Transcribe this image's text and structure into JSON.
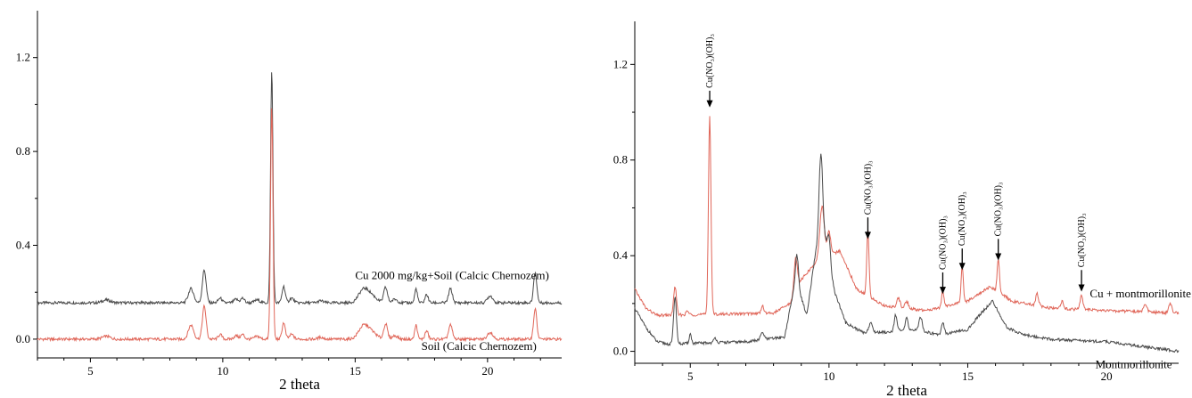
{
  "chart_data": [
    {
      "type": "line",
      "xlabel": "2 theta",
      "ylabel": "",
      "xlim": [
        3,
        22.8
      ],
      "ylim": [
        -0.08,
        1.4
      ],
      "xticks": [
        5,
        10,
        15,
        20
      ],
      "xtick_labels": [
        "5",
        "10",
        "15",
        "20"
      ],
      "yticks": [
        0.0,
        0.4,
        0.8,
        1.2
      ],
      "ytick_labels": [
        "0.0",
        "0.4",
        "0.8",
        "1.2"
      ],
      "series": [
        {
          "name": "Cu 2000 mg/kg+Soil (Calcic Chernozem)",
          "color": "#4a4a4a",
          "baseline": 0.155,
          "x": [
            3.0,
            22.8
          ],
          "peaks": [
            [
              5.6,
              0.012,
              0.15
            ],
            [
              8.8,
              0.06,
              0.1
            ],
            [
              9.3,
              0.14,
              0.07
            ],
            [
              9.9,
              0.02,
              0.07
            ],
            [
              10.5,
              0.015,
              0.08
            ],
            [
              10.75,
              0.02,
              0.07
            ],
            [
              11.3,
              0.012,
              0.1
            ],
            [
              11.85,
              0.99,
              0.045
            ],
            [
              12.3,
              0.07,
              0.06
            ],
            [
              12.6,
              0.02,
              0.08
            ],
            [
              13.7,
              0.008,
              0.1
            ],
            [
              15.3,
              0.05,
              0.18
            ],
            [
              15.6,
              0.03,
              0.2
            ],
            [
              16.15,
              0.065,
              0.07
            ],
            [
              16.5,
              0.015,
              0.1
            ],
            [
              17.3,
              0.06,
              0.05
            ],
            [
              17.7,
              0.035,
              0.06
            ],
            [
              18.6,
              0.06,
              0.07
            ],
            [
              20.1,
              0.03,
              0.1
            ],
            [
              21.8,
              0.13,
              0.06
            ]
          ]
        },
        {
          "name": "Soil (Calcic Chernozem)",
          "color": "#e06659",
          "baseline": 0.0,
          "x": [
            3.0,
            22.8
          ],
          "peaks": [
            [
              5.6,
              0.012,
              0.15
            ],
            [
              8.8,
              0.06,
              0.1
            ],
            [
              9.3,
              0.14,
              0.07
            ],
            [
              9.9,
              0.02,
              0.07
            ],
            [
              10.5,
              0.015,
              0.08
            ],
            [
              10.75,
              0.02,
              0.07
            ],
            [
              11.3,
              0.012,
              0.1
            ],
            [
              11.85,
              0.99,
              0.045
            ],
            [
              12.3,
              0.07,
              0.06
            ],
            [
              12.6,
              0.02,
              0.08
            ],
            [
              13.7,
              0.008,
              0.1
            ],
            [
              15.3,
              0.05,
              0.18
            ],
            [
              15.6,
              0.03,
              0.2
            ],
            [
              16.15,
              0.065,
              0.07
            ],
            [
              16.5,
              0.015,
              0.1
            ],
            [
              17.3,
              0.06,
              0.05
            ],
            [
              17.7,
              0.035,
              0.06
            ],
            [
              18.6,
              0.06,
              0.07
            ],
            [
              20.1,
              0.03,
              0.1
            ],
            [
              21.8,
              0.13,
              0.06
            ]
          ]
        }
      ],
      "series_labels": [
        {
          "text": "Cu 2000 mg/kg+Soil (Calcic Chernozem)",
          "x": 15.0,
          "y": 0.255
        },
        {
          "text": "Soil (Calcic Chernozem)",
          "x": 17.5,
          "y": -0.045
        }
      ]
    },
    {
      "type": "line",
      "xlabel": "2 theta",
      "ylabel": "",
      "xlim": [
        3,
        22.6
      ],
      "ylim": [
        -0.05,
        1.38
      ],
      "xticks": [
        5,
        10,
        15,
        20
      ],
      "xtick_labels": [
        "5",
        "10",
        "15",
        "20"
      ],
      "yticks": [
        0.0,
        0.4,
        0.8,
        1.2
      ],
      "ytick_labels": [
        "0.0",
        "0.4",
        "0.8",
        "1.2"
      ],
      "series": [
        {
          "name": "Cu + montmorillonite",
          "color": "#e06659",
          "x": [
            3.0,
            22.6
          ],
          "baseline_points": [
            [
              3.0,
              0.26
            ],
            [
              3.4,
              0.18
            ],
            [
              3.8,
              0.15
            ],
            [
              8.0,
              0.16
            ],
            [
              8.6,
              0.2
            ],
            [
              9.0,
              0.3
            ],
            [
              9.6,
              0.38
            ],
            [
              10.4,
              0.42
            ],
            [
              11.0,
              0.26
            ],
            [
              12.0,
              0.19
            ],
            [
              13.5,
              0.17
            ],
            [
              15.0,
              0.21
            ],
            [
              15.8,
              0.27
            ],
            [
              16.6,
              0.21
            ],
            [
              18.0,
              0.18
            ],
            [
              20.0,
              0.17
            ],
            [
              22.6,
              0.16
            ]
          ],
          "peaks": [
            [
              4.45,
              0.12,
              0.05
            ],
            [
              5.7,
              0.83,
              0.045
            ],
            [
              4.9,
              0.015,
              0.05
            ],
            [
              7.6,
              0.03,
              0.05
            ],
            [
              8.8,
              0.14,
              0.06
            ],
            [
              9.75,
              0.22,
              0.08
            ],
            [
              10.0,
              0.1,
              0.06
            ],
            [
              11.4,
              0.28,
              0.04
            ],
            [
              12.5,
              0.04,
              0.06
            ],
            [
              12.8,
              0.03,
              0.06
            ],
            [
              14.1,
              0.07,
              0.04
            ],
            [
              14.8,
              0.15,
              0.04
            ],
            [
              16.1,
              0.14,
              0.04
            ],
            [
              17.5,
              0.05,
              0.05
            ],
            [
              18.4,
              0.03,
              0.05
            ],
            [
              19.1,
              0.06,
              0.05
            ],
            [
              21.4,
              0.03,
              0.06
            ],
            [
              22.3,
              0.04,
              0.05
            ]
          ]
        },
        {
          "name": "Montmorillonite",
          "color": "#4a4a4a",
          "x": [
            3.0,
            22.6
          ],
          "baseline_points": [
            [
              3.0,
              0.18
            ],
            [
              3.4,
              0.1
            ],
            [
              3.8,
              0.04
            ],
            [
              4.2,
              0.03
            ],
            [
              7.0,
              0.04
            ],
            [
              8.4,
              0.06
            ],
            [
              8.8,
              0.3
            ],
            [
              9.2,
              0.15
            ],
            [
              9.5,
              0.4
            ],
            [
              9.75,
              0.55
            ],
            [
              10.2,
              0.25
            ],
            [
              10.6,
              0.12
            ],
            [
              11.2,
              0.08
            ],
            [
              12.0,
              0.08
            ],
            [
              13.0,
              0.09
            ],
            [
              14.0,
              0.07
            ],
            [
              15.0,
              0.09
            ],
            [
              15.4,
              0.15
            ],
            [
              15.9,
              0.21
            ],
            [
              16.4,
              0.1
            ],
            [
              17.0,
              0.07
            ],
            [
              18.0,
              0.05
            ],
            [
              20.0,
              0.04
            ],
            [
              22.6,
              0.0
            ]
          ],
          "peaks": [
            [
              4.45,
              0.2,
              0.05
            ],
            [
              5.0,
              0.04,
              0.04
            ],
            [
              5.9,
              0.02,
              0.05
            ],
            [
              7.6,
              0.03,
              0.06
            ],
            [
              8.85,
              0.12,
              0.05
            ],
            [
              9.7,
              0.3,
              0.06
            ],
            [
              10.0,
              0.1,
              0.05
            ],
            [
              11.5,
              0.04,
              0.06
            ],
            [
              12.4,
              0.07,
              0.05
            ],
            [
              12.8,
              0.05,
              0.05
            ],
            [
              13.3,
              0.06,
              0.06
            ],
            [
              14.1,
              0.05,
              0.05
            ]
          ]
        }
      ],
      "series_labels": [
        {
          "text": "Cu + montmorillonite",
          "x": 19.4,
          "y": 0.225
        },
        {
          "text": "Montmorillonite",
          "x": 19.6,
          "y": -0.07
        }
      ],
      "annotations": [
        {
          "label": "Cu(NO₃)(OH)₃",
          "x": 5.7,
          "tip": 1.02,
          "top": 1.09
        },
        {
          "label": "Cu(NO₃)(OH)₃",
          "x": 11.4,
          "tip": 0.47,
          "top": 0.56
        },
        {
          "label": "Cu(NO₃)(OH)₃",
          "x": 14.1,
          "tip": 0.24,
          "top": 0.33
        },
        {
          "label": "Cu(NO₃)(OH)₃",
          "x": 14.8,
          "tip": 0.34,
          "top": 0.43
        },
        {
          "label": "Cu(NO₃)(OH)₃",
          "x": 16.1,
          "tip": 0.38,
          "top": 0.47
        },
        {
          "label": "Cu(NO₃)(OH)₃",
          "x": 19.1,
          "tip": 0.25,
          "top": 0.34
        }
      ]
    }
  ]
}
